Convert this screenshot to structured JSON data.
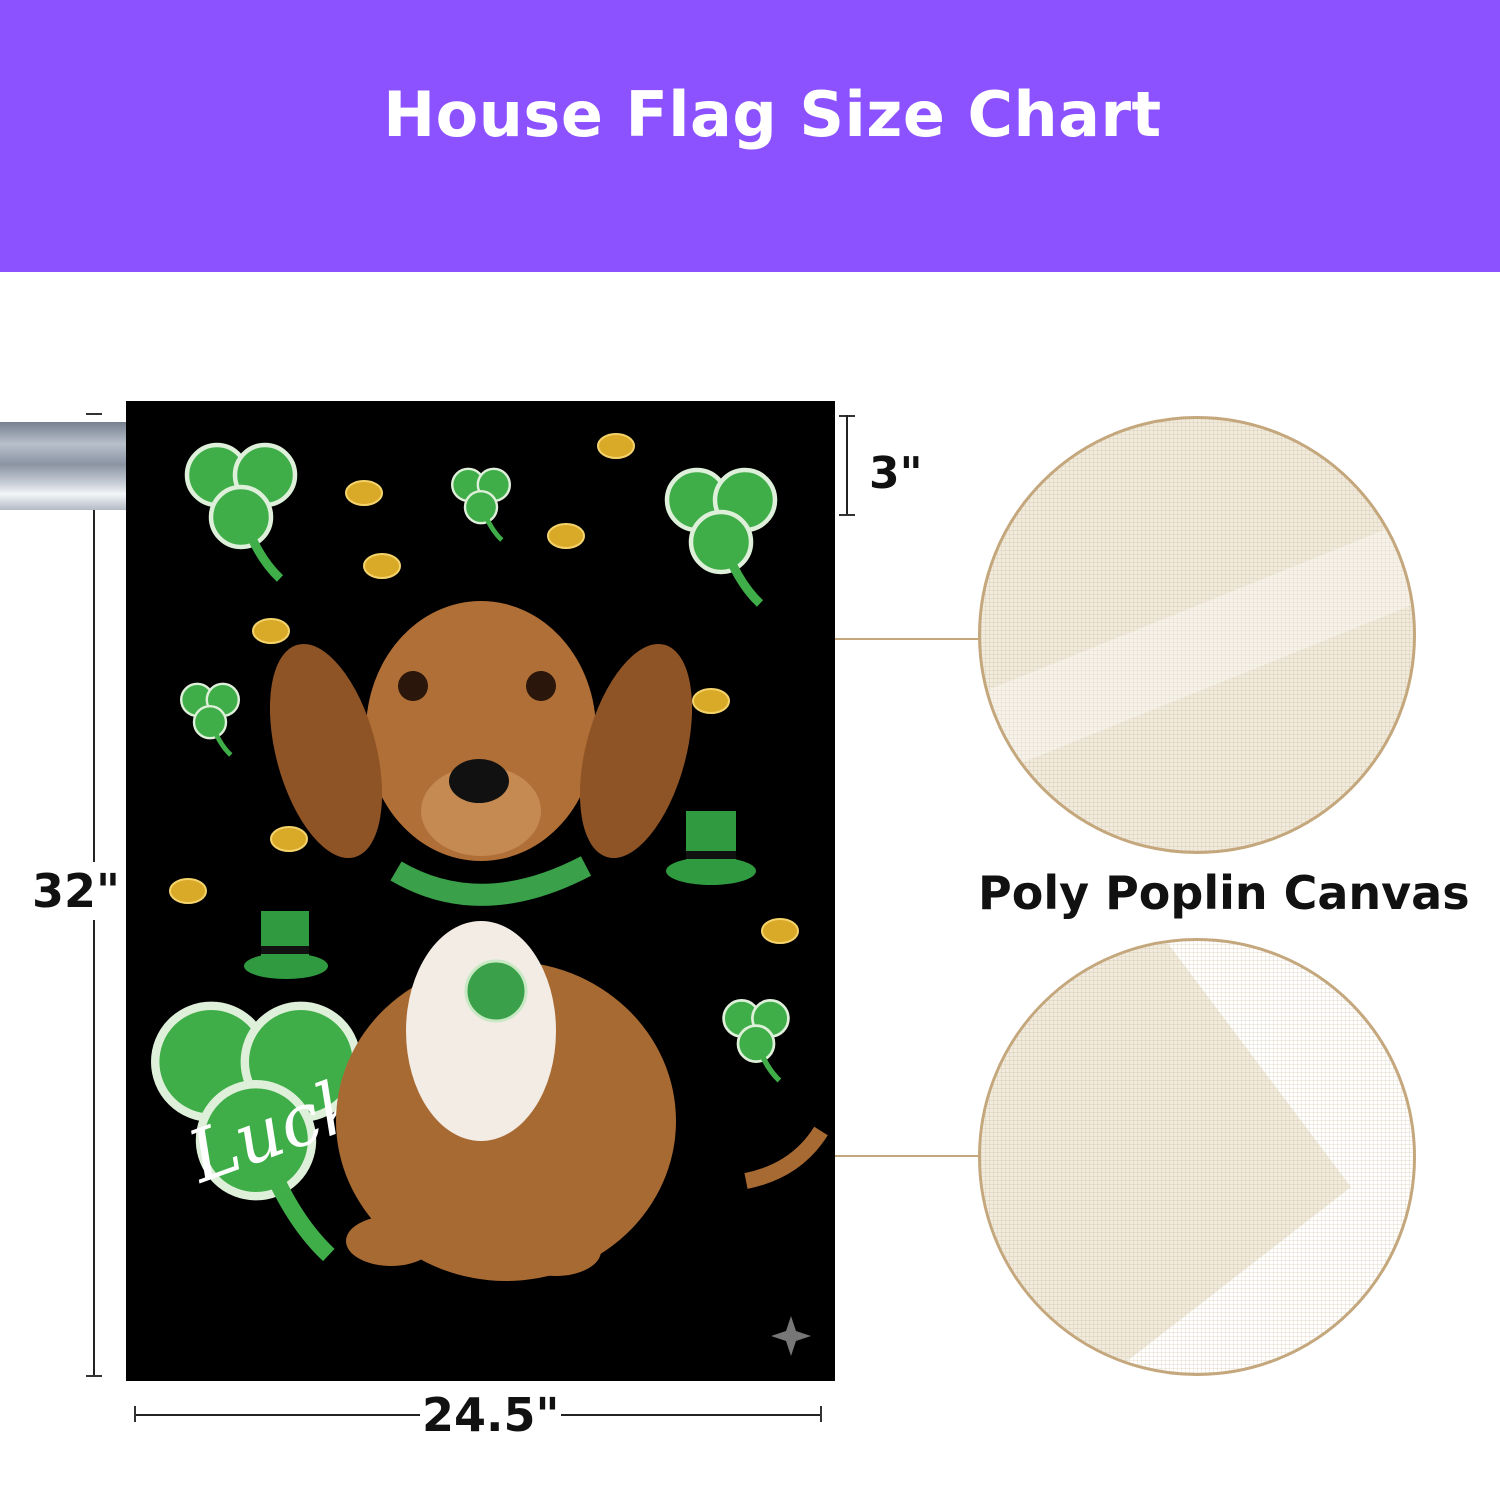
{
  "header": {
    "title": "House Flag Size Chart",
    "background_color": "#8c52ff"
  },
  "dimensions": {
    "height": "32\"",
    "width": "24.5\"",
    "sleeve": "3\""
  },
  "material": {
    "label": "Poly Poplin Canvas",
    "border_color": "#c4a77c"
  },
  "flag_artwork": {
    "lettering": "Luck"
  }
}
